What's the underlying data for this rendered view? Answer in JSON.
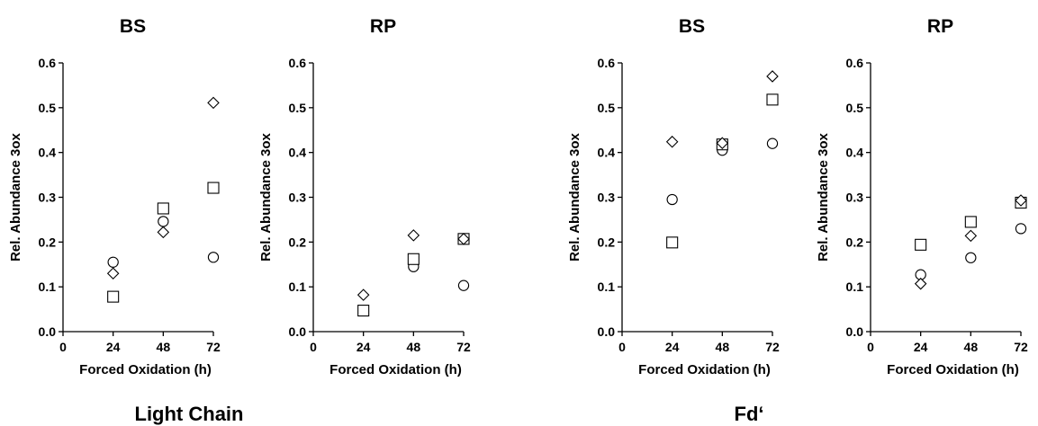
{
  "groups": [
    "Light Chain",
    "Fd‘"
  ],
  "chart_data": [
    {
      "type": "scatter",
      "group": "Light Chain",
      "title": "BS",
      "xlabel": "Forced Oxidation (h)",
      "ylabel": "Rel. Abundance 3ox",
      "x": [
        24,
        48,
        72
      ],
      "xticks": [
        0,
        24,
        48,
        72
      ],
      "yticks": [
        "0.0",
        "0.1",
        "0.2",
        "0.3",
        "0.4",
        "0.5",
        "0.6"
      ],
      "xlim": [
        0,
        72
      ],
      "ylim": [
        0,
        0.6
      ],
      "grid": false,
      "series": [
        {
          "marker": "circle",
          "values": [
            0.155,
            0.246,
            0.166
          ]
        },
        {
          "marker": "square",
          "values": [
            0.078,
            0.275,
            0.321
          ]
        },
        {
          "marker": "diamond",
          "values": [
            0.13,
            0.222,
            0.511
          ]
        }
      ]
    },
    {
      "type": "scatter",
      "group": "Light Chain",
      "title": "RP",
      "xlabel": "Forced Oxidation (h)",
      "ylabel": "Rel. Abundance 3ox",
      "x": [
        24,
        48,
        72
      ],
      "xticks": [
        0,
        24,
        48,
        72
      ],
      "yticks": [
        "0.0",
        "0.1",
        "0.2",
        "0.3",
        "0.4",
        "0.5",
        "0.6"
      ],
      "xlim": [
        0,
        72
      ],
      "ylim": [
        0,
        0.6
      ],
      "grid": false,
      "series": [
        {
          "marker": "circle",
          "values": [
            0.047,
            0.145,
            0.103
          ]
        },
        {
          "marker": "square",
          "values": [
            0.047,
            0.162,
            0.207
          ]
        },
        {
          "marker": "diamond",
          "values": [
            0.082,
            0.215,
            0.207
          ]
        }
      ]
    },
    {
      "type": "scatter",
      "group": "Fd‘",
      "title": "BS",
      "xlabel": "Forced Oxidation (h)",
      "ylabel": "Rel. Abundance 3ox",
      "x": [
        24,
        48,
        72
      ],
      "xticks": [
        0,
        24,
        48,
        72
      ],
      "yticks": [
        "0.0",
        "0.1",
        "0.2",
        "0.3",
        "0.4",
        "0.5",
        "0.6"
      ],
      "xlim": [
        0,
        72
      ],
      "ylim": [
        0,
        0.6
      ],
      "grid": false,
      "series": [
        {
          "marker": "circle",
          "values": [
            0.295,
            0.405,
            0.42
          ]
        },
        {
          "marker": "square",
          "values": [
            0.199,
            0.418,
            0.518
          ]
        },
        {
          "marker": "diamond",
          "values": [
            0.424,
            0.421,
            0.57
          ]
        }
      ]
    },
    {
      "type": "scatter",
      "group": "Fd‘",
      "title": "RP",
      "xlabel": "Forced Oxidation (h)",
      "ylabel": "Rel. Abundance 3ox",
      "x": [
        24,
        48,
        72
      ],
      "xticks": [
        0,
        24,
        48,
        72
      ],
      "yticks": [
        "0.0",
        "0.1",
        "0.2",
        "0.3",
        "0.4",
        "0.5",
        "0.6"
      ],
      "xlim": [
        0,
        72
      ],
      "ylim": [
        0,
        0.6
      ],
      "grid": false,
      "series": [
        {
          "marker": "circle",
          "values": [
            0.127,
            0.165,
            0.23
          ]
        },
        {
          "marker": "square",
          "values": [
            0.194,
            0.245,
            0.288
          ]
        },
        {
          "marker": "diamond",
          "values": [
            0.107,
            0.214,
            0.293
          ]
        }
      ]
    }
  ]
}
